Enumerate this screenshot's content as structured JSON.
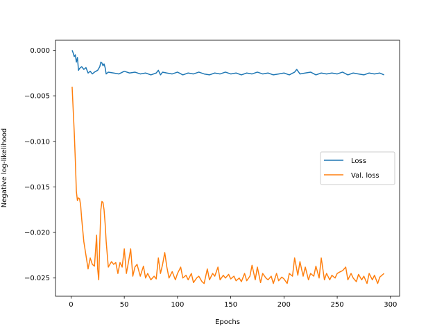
{
  "chart_data": {
    "type": "line",
    "title": "",
    "xlabel": "Epochs",
    "ylabel": "Negative log-likelihood",
    "xlim": [
      -14.6,
      308.6
    ],
    "ylim": [
      -0.027,
      0.0011
    ],
    "xticks": [
      0,
      50,
      100,
      150,
      200,
      250,
      300
    ],
    "xtick_labels": [
      "0",
      "50",
      "100",
      "150",
      "200",
      "250",
      "300"
    ],
    "yticks": [
      0.0,
      -0.005,
      -0.01,
      -0.015,
      -0.02,
      -0.025
    ],
    "ytick_labels": [
      "0.000",
      "−0.005",
      "−0.010",
      "−0.015",
      "−0.020",
      "−0.025"
    ],
    "grid": false,
    "legend": {
      "position": "center-right"
    },
    "series": [
      {
        "name": "Loss",
        "color": "#1f77b4",
        "x": [
          1,
          2,
          3,
          4,
          5,
          6,
          7,
          8,
          10,
          12,
          14,
          16,
          18,
          20,
          22,
          25,
          27,
          28,
          29,
          30,
          31,
          32,
          33,
          35,
          40,
          45,
          50,
          55,
          60,
          65,
          70,
          75,
          80,
          82,
          84,
          86,
          90,
          95,
          100,
          105,
          110,
          115,
          120,
          125,
          130,
          135,
          140,
          145,
          150,
          155,
          160,
          165,
          170,
          175,
          180,
          185,
          190,
          195,
          200,
          205,
          210,
          212,
          215,
          220,
          225,
          230,
          235,
          240,
          245,
          250,
          255,
          260,
          265,
          270,
          275,
          280,
          285,
          290,
          294
        ],
        "y": [
          0.0,
          -0.0003,
          -0.0007,
          -0.0005,
          -0.0013,
          -0.0008,
          -0.0022,
          -0.002,
          -0.0018,
          -0.0021,
          -0.0019,
          -0.0025,
          -0.0023,
          -0.0026,
          -0.0024,
          -0.0022,
          -0.0018,
          -0.0013,
          -0.0014,
          -0.0017,
          -0.0015,
          -0.0019,
          -0.0026,
          -0.0024,
          -0.0025,
          -0.0026,
          -0.0023,
          -0.0025,
          -0.0024,
          -0.0026,
          -0.0025,
          -0.0027,
          -0.0025,
          -0.0022,
          -0.0027,
          -0.0024,
          -0.0025,
          -0.0026,
          -0.0024,
          -0.0027,
          -0.0025,
          -0.0026,
          -0.0024,
          -0.0026,
          -0.0027,
          -0.0025,
          -0.0026,
          -0.0024,
          -0.0026,
          -0.0025,
          -0.0027,
          -0.0025,
          -0.0026,
          -0.0024,
          -0.0026,
          -0.0025,
          -0.0027,
          -0.0026,
          -0.0025,
          -0.0027,
          -0.0024,
          -0.0021,
          -0.0026,
          -0.0025,
          -0.0024,
          -0.0027,
          -0.0025,
          -0.0026,
          -0.0025,
          -0.0026,
          -0.0024,
          -0.0027,
          -0.0025,
          -0.0026,
          -0.0027,
          -0.0025,
          -0.0026,
          -0.0025,
          -0.0027
        ]
      },
      {
        "name": "Val. loss",
        "color": "#ff7f0e",
        "x": [
          1,
          2,
          3,
          4,
          5,
          6,
          7,
          8,
          9,
          10,
          12,
          14,
          16,
          18,
          20,
          22,
          24,
          25,
          26,
          27,
          28,
          29,
          30,
          31,
          32,
          33,
          35,
          38,
          40,
          42,
          44,
          46,
          48,
          50,
          52,
          54,
          56,
          58,
          60,
          62,
          65,
          68,
          70,
          72,
          75,
          78,
          80,
          82,
          84,
          86,
          88,
          90,
          92,
          95,
          98,
          100,
          103,
          105,
          108,
          110,
          113,
          115,
          118,
          120,
          123,
          125,
          128,
          130,
          133,
          135,
          138,
          140,
          143,
          145,
          148,
          150,
          153,
          155,
          158,
          160,
          163,
          165,
          168,
          170,
          173,
          175,
          178,
          180,
          183,
          185,
          188,
          190,
          193,
          195,
          198,
          200,
          203,
          205,
          208,
          210,
          213,
          215,
          218,
          220,
          223,
          225,
          228,
          230,
          233,
          235,
          238,
          240,
          243,
          245,
          248,
          250,
          253,
          255,
          258,
          260,
          263,
          265,
          268,
          270,
          273,
          275,
          278,
          280,
          283,
          285,
          288,
          290,
          293,
          294
        ],
        "y": [
          -0.004,
          -0.0065,
          -0.009,
          -0.012,
          -0.0155,
          -0.0165,
          -0.0162,
          -0.0163,
          -0.017,
          -0.0185,
          -0.021,
          -0.0225,
          -0.024,
          -0.0228,
          -0.0235,
          -0.0237,
          -0.0203,
          -0.024,
          -0.0252,
          -0.021,
          -0.0175,
          -0.0166,
          -0.0167,
          -0.0175,
          -0.019,
          -0.021,
          -0.0238,
          -0.0232,
          -0.0235,
          -0.0233,
          -0.0245,
          -0.0233,
          -0.0238,
          -0.0218,
          -0.0245,
          -0.0232,
          -0.0218,
          -0.0248,
          -0.0238,
          -0.0235,
          -0.0248,
          -0.0237,
          -0.025,
          -0.0245,
          -0.0252,
          -0.0248,
          -0.0251,
          -0.0228,
          -0.0245,
          -0.0235,
          -0.0222,
          -0.0238,
          -0.025,
          -0.0243,
          -0.0252,
          -0.0245,
          -0.0238,
          -0.025,
          -0.0247,
          -0.0252,
          -0.0245,
          -0.0255,
          -0.025,
          -0.0248,
          -0.0254,
          -0.0256,
          -0.024,
          -0.0252,
          -0.0245,
          -0.0248,
          -0.0238,
          -0.0252,
          -0.0247,
          -0.025,
          -0.0246,
          -0.0251,
          -0.0248,
          -0.0253,
          -0.025,
          -0.0254,
          -0.0245,
          -0.0253,
          -0.0248,
          -0.0236,
          -0.0252,
          -0.0238,
          -0.0255,
          -0.0245,
          -0.025,
          -0.0252,
          -0.0248,
          -0.0256,
          -0.0245,
          -0.0253,
          -0.0249,
          -0.0251,
          -0.0256,
          -0.0245,
          -0.0248,
          -0.0228,
          -0.0247,
          -0.0232,
          -0.0248,
          -0.0238,
          -0.0252,
          -0.0245,
          -0.0248,
          -0.0237,
          -0.025,
          -0.0228,
          -0.0252,
          -0.0245,
          -0.0252,
          -0.0247,
          -0.025,
          -0.0245,
          -0.0243,
          -0.0242,
          -0.0238,
          -0.0252,
          -0.0245,
          -0.025,
          -0.0254,
          -0.0246,
          -0.0252,
          -0.0248,
          -0.0256,
          -0.0245,
          -0.0252,
          -0.0247,
          -0.0256,
          -0.0249,
          -0.0246,
          -0.0245
        ]
      }
    ]
  }
}
